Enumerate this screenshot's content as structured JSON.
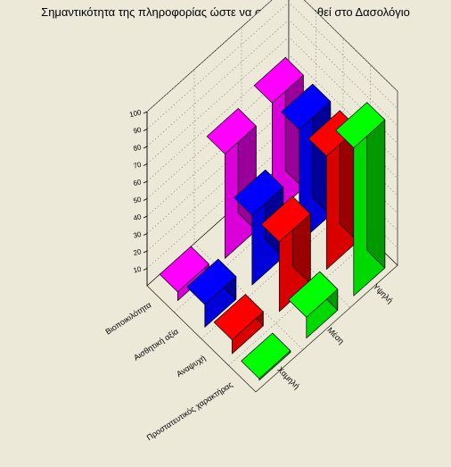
{
  "chart_data": {
    "type": "bar3d",
    "title": "Σημαντικότητα της πληροφορίας ώστε να συμπεριληφθεί στο Δασολόγιο",
    "z_ticks": [
      "10",
      "20",
      "30",
      "40",
      "50",
      "60",
      "70",
      "80",
      "90",
      "100"
    ],
    "zlim": [
      0,
      100
    ],
    "rows": [
      "Βιοποικιλότητα",
      "Αισθητική αξία",
      "Αναψυχή",
      "Προστατευτικός χαρακτήρας"
    ],
    "cols": [
      "Χαμηλή",
      "Μέση",
      "Υψηλή"
    ],
    "grid": true,
    "series": [
      {
        "name": "Βιοποικιλότητα",
        "color": "#ff00ff",
        "values": [
          5,
          60,
          65
        ]
      },
      {
        "name": "Αισθητική αξία",
        "color": "#0000ff",
        "values": [
          13,
          40,
          65
        ]
      },
      {
        "name": "Αναψυχή",
        "color": "#ff0000",
        "values": [
          8,
          40,
          65
        ]
      },
      {
        "name": "Προστατευτικός χαρακτήρας",
        "color": "#00ff00",
        "values": [
          1,
          12,
          85
        ]
      }
    ]
  }
}
